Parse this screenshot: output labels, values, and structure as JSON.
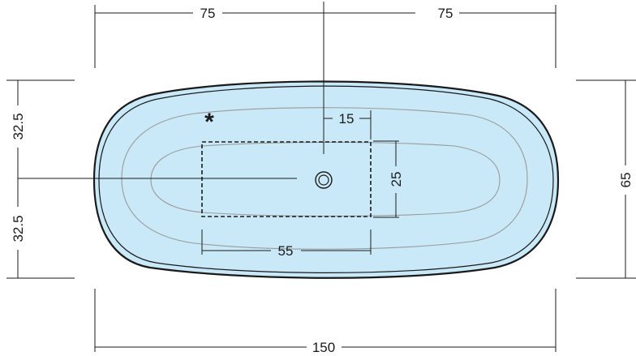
{
  "dimensions": {
    "top_left_width": "75",
    "top_right_width": "75",
    "total_width": "150",
    "left_upper_half": "32.5",
    "left_lower_half": "32.5",
    "right_total_depth": "65",
    "drain_offset": "15",
    "zone_depth": "25",
    "zone_width": "55"
  },
  "marker_symbol": "*",
  "colors": {
    "tub_fill": "#c9e9f8",
    "outline": "#1a1a1a",
    "inner_contour": "#9a9a9a"
  }
}
